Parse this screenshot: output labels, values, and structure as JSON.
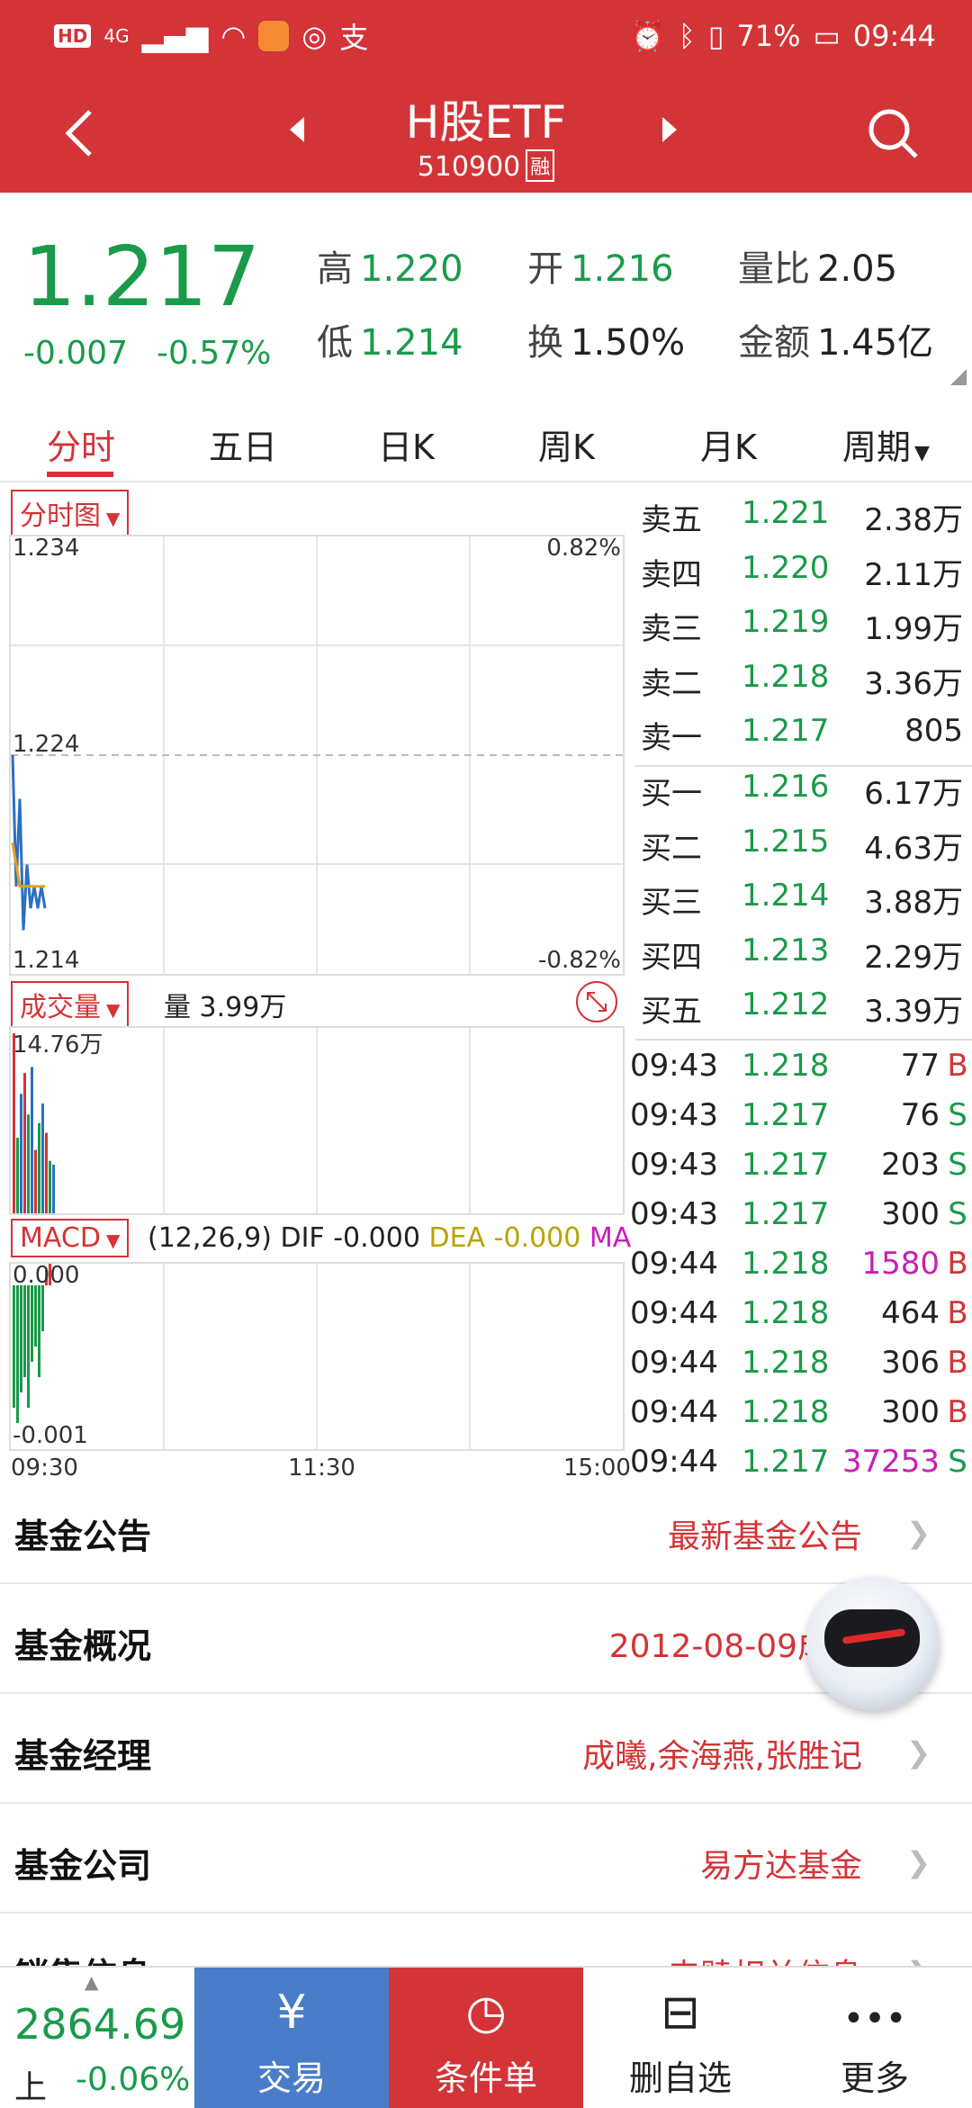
{
  "status_bar": {
    "left": [
      "HD",
      "4G",
      "支"
    ],
    "battery": "71%",
    "time": "09:44"
  },
  "nav": {
    "title": "H股ETF",
    "code": "510900",
    "margin_badge": "融"
  },
  "quote": {
    "price": "1.217",
    "change": "-0.007",
    "change_pct": "-0.57%",
    "high_label": "高",
    "high": "1.220",
    "low_label": "低",
    "low": "1.214",
    "open_label": "开",
    "open": "1.216",
    "turnover_label": "换",
    "turnover": "1.50%",
    "vol_ratio_label": "量比",
    "vol_ratio": "2.05",
    "amount_label": "金额",
    "amount": "1.45亿"
  },
  "tabs": [
    "分时",
    "五日",
    "日K",
    "周K",
    "月K",
    "周期"
  ],
  "charts": {
    "intraday": {
      "dropdown": "分时图",
      "y_top": "1.234",
      "y_mid": "1.224",
      "y_bottom": "1.214",
      "pct_top": "0.82%",
      "pct_bottom": "-0.82%"
    },
    "volume": {
      "dropdown": "成交量",
      "label": "量 3.99万",
      "max": "14.76万"
    },
    "macd": {
      "dropdown": "MACD",
      "params": "(12,26,9)",
      "dif_label": "DIF",
      "dif": "-0.000",
      "dea_label": "DEA",
      "dea": "-0.000",
      "ma_label": "MA",
      "y_top": "0.000",
      "y_bottom": "-0.001"
    },
    "x_axis": [
      "09:30",
      "11:30",
      "15:00"
    ]
  },
  "chart_data": {
    "type": "line",
    "x_ticks": [
      "09:30",
      "11:30",
      "15:00"
    ],
    "ylim": [
      1.214,
      1.234
    ],
    "price_series": [
      1.224,
      1.218,
      1.222,
      1.216,
      1.219,
      1.217,
      1.218,
      1.217,
      1.218,
      1.217
    ],
    "avg_series": [
      1.22,
      1.219,
      1.218,
      1.218,
      1.218,
      1.218,
      1.218,
      1.218,
      1.218,
      1.218
    ],
    "volume_max": "14.76万",
    "volumes": [
      14.76,
      6.2,
      9.8,
      11.5,
      8.1,
      12.0,
      5.2,
      7.4,
      9.0,
      6.6,
      4.3,
      3.99
    ],
    "macd_bars": [
      -0.0008,
      -0.0009,
      -0.0007,
      -0.0006,
      -0.0008,
      -0.0005,
      -0.0004,
      -0.0006,
      -0.0003,
      0.0001,
      0.0002
    ]
  },
  "orderbook": {
    "asks": [
      {
        "label": "卖五",
        "price": "1.221",
        "vol": "2.38万"
      },
      {
        "label": "卖四",
        "price": "1.220",
        "vol": "2.11万"
      },
      {
        "label": "卖三",
        "price": "1.219",
        "vol": "1.99万"
      },
      {
        "label": "卖二",
        "price": "1.218",
        "vol": "3.36万"
      },
      {
        "label": "卖一",
        "price": "1.217",
        "vol": "805"
      }
    ],
    "bids": [
      {
        "label": "买一",
        "price": "1.216",
        "vol": "6.17万"
      },
      {
        "label": "买二",
        "price": "1.215",
        "vol": "4.63万"
      },
      {
        "label": "买三",
        "price": "1.214",
        "vol": "3.88万"
      },
      {
        "label": "买四",
        "price": "1.213",
        "vol": "2.29万"
      },
      {
        "label": "买五",
        "price": "1.212",
        "vol": "3.39万"
      }
    ]
  },
  "ticks": [
    {
      "time": "09:43",
      "price": "1.218",
      "vol": "77",
      "dir": "B",
      "big": false
    },
    {
      "time": "09:43",
      "price": "1.217",
      "vol": "76",
      "dir": "S",
      "big": false
    },
    {
      "time": "09:43",
      "price": "1.217",
      "vol": "203",
      "dir": "S",
      "big": false
    },
    {
      "time": "09:43",
      "price": "1.217",
      "vol": "300",
      "dir": "S",
      "big": false
    },
    {
      "time": "09:44",
      "price": "1.218",
      "vol": "1580",
      "dir": "B",
      "big": true
    },
    {
      "time": "09:44",
      "price": "1.218",
      "vol": "464",
      "dir": "B",
      "big": false
    },
    {
      "time": "09:44",
      "price": "1.218",
      "vol": "306",
      "dir": "B",
      "big": false
    },
    {
      "time": "09:44",
      "price": "1.218",
      "vol": "300",
      "dir": "B",
      "big": false
    },
    {
      "time": "09:44",
      "price": "1.217",
      "vol": "37253",
      "dir": "S",
      "big": true
    }
  ],
  "info": [
    {
      "label": "基金公告",
      "value": "最新基金公告"
    },
    {
      "label": "基金概况",
      "value": "2012-08-09成立"
    },
    {
      "label": "基金经理",
      "value": "成曦,余海燕,张胜记"
    },
    {
      "label": "基金公司",
      "value": "易方达基金"
    },
    {
      "label": "销售信息",
      "value": "申赎相关信息"
    }
  ],
  "bottom": {
    "index_value": "2864.69",
    "index_exchange": "上",
    "index_pct": "-0.06%",
    "buttons": [
      {
        "label": "交易",
        "icon": "yen-cycle-icon",
        "glyph": "¥",
        "bg": "#4a7dc9"
      },
      {
        "label": "条件单",
        "icon": "clock-doc-icon",
        "glyph": "◷",
        "bg": "#d33437"
      },
      {
        "label": "删自选",
        "icon": "minus-box-icon",
        "glyph": "⊟",
        "bg": "#ffffff"
      },
      {
        "label": "更多",
        "icon": "more-dots-icon",
        "glyph": "•••",
        "bg": "#ffffff"
      }
    ]
  },
  "colors": {
    "brand_red": "#d33437",
    "down_green": "#1a9a4a",
    "trade_blue": "#4a7dc9",
    "big_magenta": "#c81eb4"
  }
}
